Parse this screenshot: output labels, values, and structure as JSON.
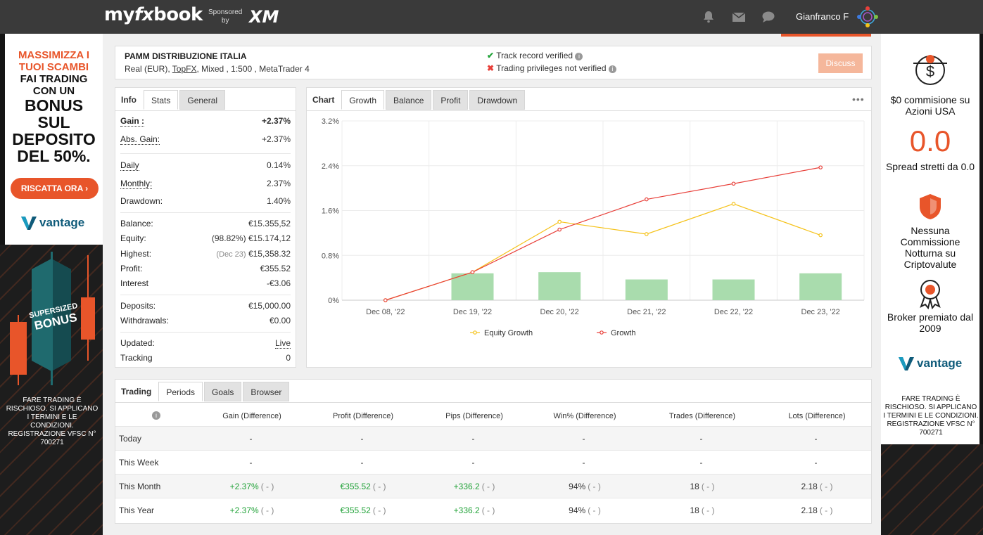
{
  "header": {
    "logo_my": "my",
    "logo_fx": "fx",
    "logo_book": "book",
    "sponsored_line1": "Sponsored",
    "sponsored_line2": "by",
    "sponsor": "XM",
    "username": "Gianfranco F"
  },
  "ad_left": {
    "line1": "MASSIMIZZA I",
    "line2": "TUOI SCAMBI",
    "line3": "FAI TRADING",
    "line4": "CON UN",
    "line5": "BONUS",
    "line6": "SUL",
    "line7": "DEPOSITO",
    "line8": "DEL 50%.",
    "cta": "RISCATTA ORA ›",
    "brand": "vantage",
    "bonus_art_line1": "SUPERSIZED",
    "bonus_art_line2": "BONUS",
    "disclaimer": "FARE TRADING È RISCHIOSO. SI APPLICANO I TERMINI E LE CONDIZIONI. REGISTRAZIONE VFSC N° 700271"
  },
  "ad_right": {
    "item1": "$0 commisione su Azioni USA",
    "big": "0.0",
    "item2": "Spread stretti da 0.0",
    "item3": "Nessuna Commissione Notturna su Criptovalute",
    "item4": "Broker premiato dal 2009",
    "brand": "vantage",
    "disclaimer": "FARE TRADING È RISCHIOSO. SI APPLICANO I TERMINI E LE CONDIZIONI. REGISTRAZIONE VFSC N° 700271"
  },
  "account": {
    "name": "PAMM DISTRIBUZIONE ITALIA",
    "desc_prefix": "Real (EUR), ",
    "broker": "TopFX",
    "desc_suffix": ", Mixed , 1:500 , MetaTrader 4",
    "track_record": "Track record verified",
    "trading_privileges": "Trading privileges not verified",
    "discuss_label": "Discuss"
  },
  "stats": {
    "tabs": [
      "Info",
      "Stats",
      "General"
    ],
    "gain_label": "Gain :",
    "gain": "+2.37%",
    "abs_gain_label": "Abs. Gain:",
    "abs_gain": "+2.37%",
    "daily_label": "Daily",
    "daily": "0.14%",
    "monthly_label": "Monthly:",
    "monthly": "2.37%",
    "drawdown_label": "Drawdown:",
    "drawdown": "1.40%",
    "balance_label": "Balance:",
    "balance": "€15.355,52",
    "equity_label": "Equity:",
    "equity_pct": "(98.82%)",
    "equity": "€15.174,12",
    "highest_label": "Highest:",
    "highest_date": "(Dec 23)",
    "highest": "€15,358.32",
    "profit_label": "Profit:",
    "profit": "€355.52",
    "interest_label": "Interest",
    "interest": "-€3.06",
    "deposits_label": "Deposits:",
    "deposits": "€15,000.00",
    "withdrawals_label": "Withdrawals:",
    "withdrawals": "€0.00",
    "updated_label": "Updated:",
    "updated": "Live",
    "tracking_label": "Tracking",
    "tracking": "0"
  },
  "chart_panel": {
    "tabs": [
      "Chart",
      "Growth",
      "Balance",
      "Profit",
      "Drawdown"
    ],
    "menu": "•••"
  },
  "chart_data": {
    "type": "line",
    "categories": [
      "Dec 08, '22",
      "Dec 19, '22",
      "Dec 20, '22",
      "Dec 21, '22",
      "Dec 22, '22",
      "Dec 23, '22"
    ],
    "y_ticks": [
      "0%",
      "0.8%",
      "1.6%",
      "2.4%",
      "3.2%"
    ],
    "ylim": [
      0,
      3.2
    ],
    "grid": true,
    "legend_placement": "bottom",
    "series": [
      {
        "name": "Equity Growth",
        "type": "line",
        "color": "#f5c219",
        "values": [
          0,
          0.5,
          1.4,
          1.18,
          1.72,
          1.16
        ]
      },
      {
        "name": "Growth",
        "type": "line",
        "color": "#e8403a",
        "values": [
          0,
          0.5,
          1.26,
          1.8,
          2.08,
          2.37
        ]
      },
      {
        "type": "bar",
        "color": "#a9dcad",
        "values": [
          0,
          0.48,
          0.5,
          0.37,
          0.37,
          0.48
        ]
      }
    ]
  },
  "trading": {
    "tabs": [
      "Trading",
      "Periods",
      "Goals",
      "Browser"
    ],
    "headers": [
      "Gain (Difference)",
      "Profit (Difference)",
      "Pips (Difference)",
      "Win% (Difference)",
      "Trades (Difference)",
      "Lots (Difference)"
    ],
    "rows": [
      {
        "period": "Today",
        "cells": [
          [
            "-",
            ""
          ],
          [
            "-",
            ""
          ],
          [
            "-",
            ""
          ],
          [
            "-",
            ""
          ],
          [
            "-",
            ""
          ],
          [
            "-",
            ""
          ]
        ]
      },
      {
        "period": "This Week",
        "cells": [
          [
            "-",
            ""
          ],
          [
            "-",
            ""
          ],
          [
            "-",
            ""
          ],
          [
            "-",
            ""
          ],
          [
            "-",
            ""
          ],
          [
            "-",
            ""
          ]
        ]
      },
      {
        "period": "This Month",
        "cells": [
          [
            "+2.37%",
            "( - )"
          ],
          [
            "€355.52",
            "( - )"
          ],
          [
            "+336.2",
            "( - )"
          ],
          [
            "94%",
            "( - )"
          ],
          [
            "18",
            "( - )"
          ],
          [
            "2.18",
            "( - )"
          ]
        ]
      },
      {
        "period": "This Year",
        "cells": [
          [
            "+2.37%",
            "( - )"
          ],
          [
            "€355.52",
            "( - )"
          ],
          [
            "+336.2",
            "( - )"
          ],
          [
            "94%",
            "( - )"
          ],
          [
            "18",
            "( - )"
          ],
          [
            "2.18",
            "( - )"
          ]
        ]
      }
    ]
  },
  "colors": {
    "accent": "#e8552a",
    "green": "#23a33a",
    "header_bg": "#3a3a3a"
  }
}
